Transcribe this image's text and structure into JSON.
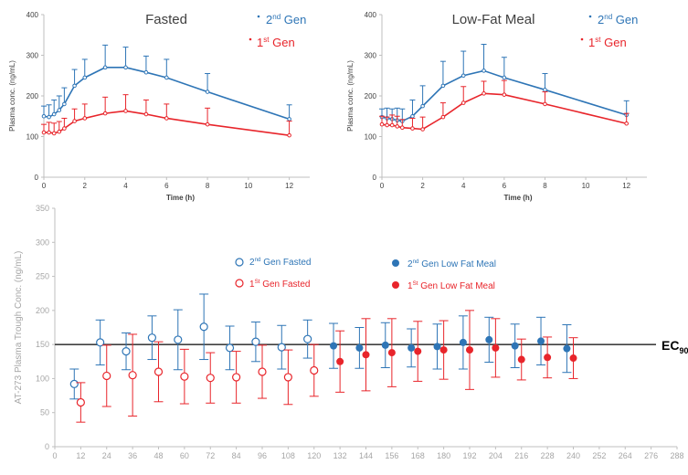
{
  "colors": {
    "gen2": "#2e75b6",
    "gen1": "#e8252b",
    "axis": "#bfbfbf",
    "ec_line": "#404040"
  },
  "chart_data": [
    {
      "type": "line",
      "title": "Fasted",
      "xlabel": "Time (h)",
      "ylabel": "Plasma conc. (ng/mL)",
      "xlim": [
        0,
        13
      ],
      "ylim": [
        0,
        400
      ],
      "xticks": [
        "0",
        "2",
        "4",
        "6",
        "8",
        "10",
        "12"
      ],
      "yticks": [
        "0",
        "100",
        "200",
        "300",
        "400"
      ],
      "legend_position": "top-right",
      "legend": [
        {
          "base": "2",
          "sup": "nd",
          "rest": " Gen",
          "series": "gen2"
        },
        {
          "base": "1",
          "sup": "st",
          "rest": " Gen",
          "series": "gen1"
        }
      ],
      "series": [
        {
          "key": "gen2",
          "x": [
            0,
            0.25,
            0.5,
            0.75,
            1,
            1.5,
            2,
            3,
            4,
            5,
            6,
            8,
            12
          ],
          "y": [
            150,
            148,
            155,
            165,
            180,
            225,
            245,
            270,
            270,
            258,
            245,
            210,
            143
          ],
          "err": [
            25,
            30,
            35,
            35,
            40,
            40,
            45,
            55,
            50,
            40,
            45,
            45,
            35
          ]
        },
        {
          "key": "gen1",
          "x": [
            0,
            0.25,
            0.5,
            0.75,
            1,
            1.5,
            2,
            3,
            4,
            5,
            6,
            8,
            12
          ],
          "y": [
            110,
            110,
            108,
            112,
            120,
            138,
            145,
            157,
            163,
            155,
            145,
            130,
            103
          ],
          "err": [
            20,
            25,
            25,
            25,
            25,
            30,
            35,
            40,
            40,
            35,
            35,
            40,
            35
          ]
        }
      ]
    },
    {
      "type": "line",
      "title": "Low-Fat Meal",
      "xlabel": "Time (h)",
      "ylabel": "Plasma conc. (ng/mL)",
      "xlim": [
        0,
        13
      ],
      "ylim": [
        0,
        400
      ],
      "xticks": [
        "0",
        "2",
        "4",
        "6",
        "8",
        "10",
        "12"
      ],
      "yticks": [
        "0",
        "100",
        "200",
        "300",
        "400"
      ],
      "legend_position": "top-right",
      "legend": [
        {
          "base": "2",
          "sup": "nd",
          "rest": " Gen",
          "series": "gen2"
        },
        {
          "base": "1",
          "sup": "st",
          "rest": " Gen",
          "series": "gen1"
        }
      ],
      "series": [
        {
          "key": "gen2",
          "x": [
            0,
            0.25,
            0.5,
            0.75,
            1,
            1.5,
            2,
            3,
            4,
            5,
            6,
            8,
            12
          ],
          "y": [
            148,
            145,
            143,
            140,
            138,
            150,
            175,
            225,
            250,
            262,
            245,
            215,
            153
          ],
          "err": [
            20,
            25,
            25,
            30,
            30,
            40,
            50,
            60,
            60,
            65,
            50,
            40,
            35
          ]
        },
        {
          "key": "gen1",
          "x": [
            0,
            0.25,
            0.5,
            0.75,
            1,
            1.5,
            2,
            3,
            4,
            5,
            6,
            8,
            12
          ],
          "y": [
            130,
            128,
            128,
            125,
            122,
            120,
            118,
            148,
            183,
            206,
            203,
            180,
            132
          ],
          "err": [
            20,
            20,
            25,
            25,
            20,
            25,
            30,
            35,
            40,
            30,
            35,
            30,
            25
          ]
        }
      ]
    },
    {
      "type": "scatter",
      "title": "",
      "xlabel": "",
      "ylabel": "AT-273 Plasma Trough Conc. (ng/mL)",
      "xlim": [
        0,
        288
      ],
      "ylim": [
        0,
        350
      ],
      "xticks": [
        "0",
        "12",
        "24",
        "36",
        "48",
        "60",
        "72",
        "84",
        "96",
        "108",
        "120",
        "132",
        "144",
        "156",
        "168",
        "180",
        "192",
        "204",
        "216",
        "228",
        "240",
        "252",
        "264",
        "276",
        "288"
      ],
      "yticks": [
        "0",
        "50",
        "100",
        "150",
        "200",
        "250",
        "300",
        "350"
      ],
      "legend_position": "top-center",
      "legend": [
        {
          "base": "2",
          "sup": "nd",
          "rest": " Gen Fasted",
          "series": "g2f"
        },
        {
          "base": "1",
          "sup": "St",
          "rest": " Gen Fasted",
          "series": "g1f"
        },
        {
          "base": "2",
          "sup": "nd",
          "rest": " Gen Low Fat Meal",
          "series": "g2m"
        },
        {
          "base": "1",
          "sup": "St",
          "rest": " Gen Low Fat Meal",
          "series": "g1m"
        }
      ],
      "reference_line": {
        "y": 150,
        "label_base": "EC",
        "label_sub": "90"
      },
      "series": [
        {
          "key": "g2f",
          "color": "gen2",
          "filled": false,
          "x": [
            9,
            21,
            33,
            45,
            57,
            69,
            81,
            93,
            105,
            117
          ],
          "y": [
            92,
            153,
            140,
            160,
            157,
            176,
            145,
            154,
            146,
            158
          ],
          "err": [
            22,
            33,
            27,
            32,
            44,
            48,
            32,
            29,
            32,
            28
          ]
        },
        {
          "key": "g1f",
          "color": "gen1",
          "filled": false,
          "x": [
            12,
            24,
            36,
            48,
            60,
            72,
            84,
            96,
            108,
            120
          ],
          "y": [
            65,
            104,
            105,
            110,
            103,
            101,
            102,
            110,
            102,
            112
          ],
          "err": [
            29,
            45,
            60,
            44,
            40,
            37,
            38,
            39,
            40,
            38
          ]
        },
        {
          "key": "g2m",
          "color": "gen2",
          "filled": true,
          "x": [
            129,
            141,
            153,
            165,
            177,
            189,
            201,
            213,
            225,
            237
          ],
          "y": [
            148,
            145,
            149,
            145,
            147,
            153,
            157,
            148,
            155,
            144
          ],
          "err": [
            33,
            30,
            33,
            28,
            33,
            39,
            33,
            32,
            35,
            35
          ]
        },
        {
          "key": "g1m",
          "color": "gen1",
          "filled": true,
          "x": [
            132,
            144,
            156,
            168,
            180,
            192,
            204,
            216,
            228,
            240
          ],
          "y": [
            125,
            135,
            138,
            140,
            142,
            142,
            145,
            128,
            131,
            130
          ],
          "err": [
            45,
            53,
            50,
            44,
            43,
            58,
            43,
            30,
            30,
            30
          ]
        }
      ]
    }
  ]
}
